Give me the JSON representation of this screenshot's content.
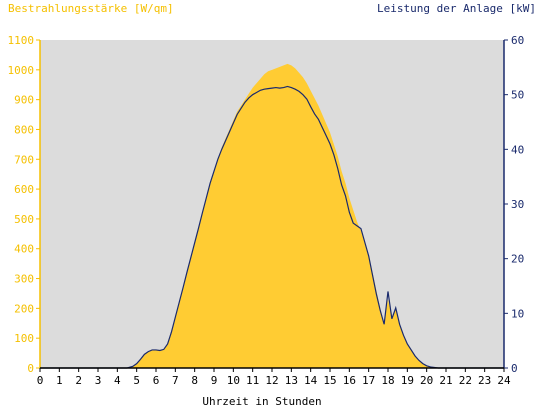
{
  "chart_data": {
    "type": "area",
    "left_axis_title": "Bestrahlungsstärke [W/qm]",
    "right_axis_title": "Leistung der Anlage [kW]",
    "xlabel": "Uhrzeit in Stunden",
    "xlim": [
      0,
      24
    ],
    "ylim_left": [
      0,
      1100
    ],
    "ylim_right": [
      0,
      60
    ],
    "x_ticks": [
      "0",
      "1",
      "2",
      "3",
      "4",
      "5",
      "6",
      "7",
      "8",
      "9",
      "10",
      "11",
      "12",
      "13",
      "14",
      "15",
      "16",
      "17",
      "18",
      "19",
      "20",
      "21",
      "22",
      "23",
      "24"
    ],
    "y_left_ticks": [
      "0",
      "100",
      "200",
      "300",
      "400",
      "500",
      "600",
      "700",
      "800",
      "900",
      "1000",
      "1100"
    ],
    "y_right_ticks": [
      "0",
      "10",
      "20",
      "30",
      "40",
      "50",
      "60"
    ],
    "grid": false,
    "colors": {
      "irradiance_fill": "#ffcc33",
      "power_line": "#1a2a6c",
      "plot_background": "#dcdcdc",
      "left_axis_text": "#f5c000",
      "right_axis_text": "#1a2a6c",
      "x_axis_text": "#000000"
    },
    "series": [
      {
        "axis": "left",
        "x": [
          0,
          4.5,
          4.8,
          5.0,
          5.2,
          5.4,
          5.6,
          5.8,
          6.0,
          6.2,
          6.4,
          6.6,
          6.8,
          7.0,
          7.2,
          7.4,
          7.6,
          7.8,
          8.0,
          8.2,
          8.4,
          8.6,
          8.8,
          9.0,
          9.2,
          9.4,
          9.6,
          9.8,
          10.0,
          10.2,
          10.4,
          10.6,
          10.8,
          11.0,
          11.2,
          11.4,
          11.6,
          11.8,
          12.0,
          12.2,
          12.4,
          12.6,
          12.8,
          13.0,
          13.2,
          13.4,
          13.6,
          13.8,
          14.0,
          14.2,
          14.4,
          14.6,
          14.8,
          15.0,
          15.2,
          15.4,
          15.6,
          15.8,
          16.0,
          16.2,
          16.4,
          16.6,
          16.8,
          17.0,
          17.2,
          17.4,
          17.6,
          17.8,
          18.0,
          18.2,
          18.4,
          18.6,
          18.8,
          19.0,
          19.2,
          19.4,
          19.6,
          19.8,
          20.0,
          20.2,
          20.4,
          20.6,
          20.8,
          21.0,
          21.3,
          24
        ],
        "y": [
          0,
          0,
          5,
          15,
          30,
          45,
          55,
          60,
          60,
          58,
          62,
          80,
          120,
          170,
          220,
          270,
          320,
          370,
          420,
          470,
          520,
          570,
          620,
          660,
          700,
          740,
          770,
          800,
          830,
          860,
          880,
          900,
          920,
          940,
          955,
          970,
          985,
          995,
          1000,
          1005,
          1010,
          1015,
          1020,
          1015,
          1005,
          990,
          975,
          955,
          930,
          905,
          880,
          850,
          820,
          790,
          750,
          710,
          660,
          620,
          570,
          530,
          490,
          460,
          420,
          380,
          320,
          260,
          200,
          150,
          230,
          170,
          200,
          150,
          110,
          80,
          60,
          40,
          25,
          15,
          8,
          3,
          1,
          0,
          0,
          0,
          0,
          0
        ],
        "id": "irradiance"
      },
      {
        "axis": "right",
        "x": [
          0,
          4.5,
          4.8,
          5.0,
          5.2,
          5.4,
          5.6,
          5.8,
          6.0,
          6.2,
          6.4,
          6.6,
          6.8,
          7.0,
          7.2,
          7.4,
          7.6,
          7.8,
          8.0,
          8.2,
          8.4,
          8.6,
          8.8,
          9.0,
          9.2,
          9.4,
          9.6,
          9.8,
          10.0,
          10.2,
          10.4,
          10.6,
          10.8,
          11.0,
          11.2,
          11.4,
          11.6,
          11.8,
          12.0,
          12.2,
          12.4,
          12.6,
          12.8,
          13.0,
          13.2,
          13.4,
          13.6,
          13.8,
          14.0,
          14.2,
          14.4,
          14.6,
          14.8,
          15.0,
          15.2,
          15.4,
          15.6,
          15.8,
          16.0,
          16.2,
          16.4,
          16.6,
          16.8,
          17.0,
          17.2,
          17.4,
          17.6,
          17.8,
          18.0,
          18.2,
          18.4,
          18.6,
          18.8,
          19.0,
          19.2,
          19.4,
          19.6,
          19.8,
          20.0,
          20.2,
          20.4,
          20.6,
          20.8,
          21.0,
          21.3,
          24
        ],
        "y": [
          0,
          0,
          0.3,
          0.8,
          1.6,
          2.5,
          3.0,
          3.3,
          3.3,
          3.2,
          3.4,
          4.4,
          6.6,
          9.3,
          12.0,
          14.7,
          17.5,
          20.2,
          22.9,
          25.6,
          28.4,
          31.1,
          33.8,
          36.0,
          38.2,
          40.0,
          41.6,
          43.2,
          44.8,
          46.4,
          47.5,
          48.6,
          49.4,
          50.0,
          50.4,
          50.8,
          51.0,
          51.1,
          51.2,
          51.3,
          51.2,
          51.3,
          51.5,
          51.3,
          51.0,
          50.6,
          50.0,
          49.2,
          47.8,
          46.5,
          45.5,
          44.0,
          42.5,
          41.0,
          39.0,
          36.5,
          33.5,
          31.5,
          28.5,
          26.5,
          26.0,
          25.5,
          23.0,
          20.5,
          17.0,
          13.5,
          10.5,
          8.0,
          14.0,
          9.0,
          11.0,
          8.0,
          6.0,
          4.4,
          3.3,
          2.2,
          1.4,
          0.8,
          0.4,
          0.2,
          0.1,
          0,
          0,
          0,
          0,
          0
        ],
        "id": "power"
      }
    ]
  }
}
